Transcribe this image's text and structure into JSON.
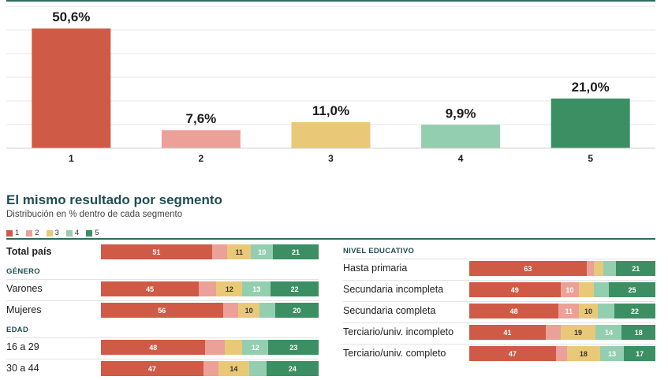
{
  "colors": {
    "c1": "#cf5a45",
    "c2": "#eba197",
    "c3": "#e9c978",
    "c4": "#94ceb0",
    "c5": "#3b8f63",
    "title": "#1f4e52",
    "rule": "#2f6b5f",
    "grid": "#e6e6e6"
  },
  "chart_data": [
    {
      "type": "bar",
      "categories": [
        "1",
        "2",
        "3",
        "4",
        "5"
      ],
      "values": [
        50.6,
        7.6,
        11.0,
        9.9,
        21.0
      ],
      "value_labels": [
        "50,6%",
        "7,6%",
        "11,0%",
        "9,9%",
        "21,0%"
      ],
      "ylim": [
        0,
        60
      ],
      "grid": true
    },
    {
      "type": "bar",
      "stacked": true,
      "orientation": "horizontal",
      "title": "El mismo resultado por segmento",
      "subtitle": "Distribución en % dentro de cada segmento",
      "legend": [
        "1",
        "2",
        "3",
        "4",
        "5"
      ],
      "rows_left": [
        {
          "label": "Total país",
          "bold": true,
          "values": [
            51,
            7,
            11,
            10,
            21
          ]
        },
        {
          "heading": "GÉNERO"
        },
        {
          "label": "Varones",
          "values": [
            45,
            8,
            12,
            13,
            22
          ]
        },
        {
          "label": "Mujeres",
          "values": [
            56,
            7,
            10,
            7,
            20
          ]
        },
        {
          "heading": "EDAD"
        },
        {
          "label": "16 a 29",
          "values": [
            48,
            9,
            8,
            12,
            23
          ]
        },
        {
          "label": "30 a 44",
          "values": [
            47,
            7,
            14,
            8,
            24
          ]
        }
      ],
      "rows_right": [
        {
          "heading": "NIVEL EDUCATIVO"
        },
        {
          "label": "Hasta primaria",
          "values": [
            63,
            4,
            5,
            7,
            21
          ]
        },
        {
          "label": "Secundaria incompleta",
          "values": [
            49,
            10,
            8,
            8,
            25
          ]
        },
        {
          "label": "Secundaria completa",
          "values": [
            48,
            11,
            10,
            9,
            22
          ]
        },
        {
          "label": "Terciario/univ. incompleto",
          "values": [
            41,
            8,
            19,
            14,
            18
          ]
        },
        {
          "label": "Terciario/univ. completo",
          "values": [
            47,
            6,
            18,
            13,
            17
          ]
        }
      ]
    }
  ]
}
